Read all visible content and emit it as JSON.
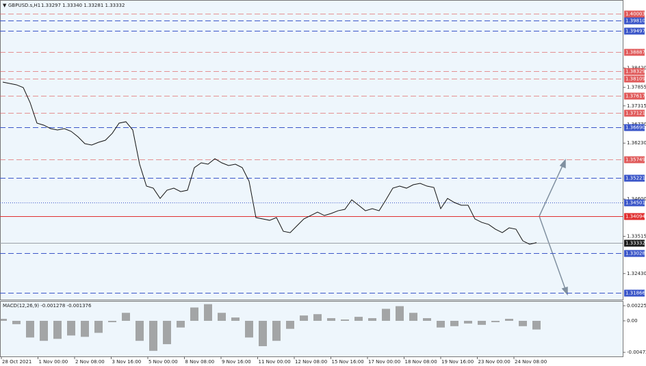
{
  "chart_data": [
    {
      "type": "line",
      "title": "GBPUSD.s,H1",
      "subtitle": "1.33297 1.33340 1.33281 1.33332",
      "color": "#111111",
      "ylim": [
        1.3167,
        1.4034
      ],
      "yticks": [
        {
          "value": 1.3842,
          "label": "1.38420"
        },
        1.37855,
        1.37315,
        {
          "value": 1.3677,
          "label": "1.36770"
        },
        {
          "value": 1.3623,
          "label": "1.36230"
        },
        {
          "value": 1.346,
          "label": "1.34600"
        },
        1.33515,
        {
          "value": 1.3243,
          "label": "1.32430"
        }
      ],
      "xticks": [
        "28 Oct 2021",
        "1 Nov 00:00",
        "2 Nov 08:00",
        "3 Nov 16:00",
        "5 Nov 00:00",
        "8 Nov 08:00",
        "9 Nov 16:00",
        "11 Nov 00:00",
        "12 Nov 08:00",
        "15 Nov 16:00",
        "17 Nov 00:00",
        "18 Nov 08:00",
        "19 Nov 16:00",
        "23 Nov 00:00",
        "24 Nov 08:00"
      ],
      "values": [
        1.38009,
        1.37969,
        1.37929,
        1.37849,
        1.3741,
        1.36813,
        1.36753,
        1.36653,
        1.36613,
        1.36653,
        1.36573,
        1.36414,
        1.36214,
        1.36175,
        1.36254,
        1.36314,
        1.36514,
        1.36813,
        1.36853,
        1.36613,
        1.35616,
        1.34978,
        1.34918,
        1.34619,
        1.34858,
        1.34918,
        1.34818,
        1.34858,
        1.35516,
        1.35656,
        1.35616,
        1.35776,
        1.35656,
        1.35576,
        1.35616,
        1.35516,
        1.35118,
        1.34061,
        1.34021,
        1.33981,
        1.34061,
        1.33662,
        1.33622,
        1.33822,
        1.34021,
        1.34121,
        1.3422,
        1.34121,
        1.34181,
        1.3426,
        1.343,
        1.34579,
        1.3442,
        1.3426,
        1.3432,
        1.3426,
        1.34579,
        1.34918,
        1.34978,
        1.34918,
        1.35018,
        1.35058,
        1.34978,
        1.34938,
        1.3432,
        1.34619,
        1.345,
        1.3442,
        1.3442,
        1.34021,
        1.33921,
        1.33861,
        1.33722,
        1.33622,
        1.33762,
        1.33722,
        1.33383,
        1.33283,
        1.33332
      ],
      "levels": [
        {
          "value": 1.40003,
          "color": "#e05a5a",
          "style": "dashed"
        },
        {
          "value": 1.3981,
          "label": "1.39810",
          "color": "#3a55c8",
          "style": "dashed"
        },
        {
          "value": 1.39497,
          "color": "#3a55c8",
          "style": "dashed"
        },
        {
          "value": 1.38887,
          "color": "#e05a5a",
          "style": "dashed"
        },
        {
          "value": 1.38329,
          "color": "#e05a5a",
          "style": "dashed"
        },
        {
          "value": 1.38109,
          "color": "#e05a5a",
          "style": "dashed"
        },
        {
          "value": 1.37617,
          "color": "#e05a5a",
          "style": "dashed"
        },
        {
          "value": 1.37121,
          "color": "#e05a5a",
          "style": "dashed"
        },
        {
          "value": 1.3669,
          "label": "1.36690",
          "color": "#3a55c8",
          "style": "dashed"
        },
        {
          "value": 1.35749,
          "color": "#e05a5a",
          "style": "dashed"
        },
        {
          "value": 1.35221,
          "color": "#3a55c8",
          "style": "dashed"
        },
        {
          "value": 1.34501,
          "color": "#3a55c8",
          "style": "dotted"
        },
        {
          "value": 1.34094,
          "color": "#e03030",
          "style": "solid"
        },
        {
          "value": 1.33332,
          "color": "#1a1a1a",
          "style": "current"
        },
        {
          "value": 1.33028,
          "color": "#3a55c8",
          "style": "dashed"
        },
        {
          "value": 1.31866,
          "color": "#3a55c8",
          "style": "dashed"
        }
      ]
    },
    {
      "type": "bar",
      "title": "MACD(12,26,9) -0.001278 -0.001376",
      "color": "#8a8a8a",
      "ylim": [
        -0.00544,
        0.00287
      ],
      "yticks": [
        0.002258,
        {
          "value": 0,
          "label": "0.00"
        },
        -0.004723
      ],
      "values": [
        0.0003,
        -0.0005,
        -0.0025,
        -0.003,
        -0.0027,
        -0.0022,
        -0.0024,
        -0.0018,
        -0.0002,
        0.0012,
        -0.003,
        -0.0045,
        -0.0035,
        -0.001,
        0.002,
        0.0025,
        0.0012,
        0.0005,
        -0.0025,
        -0.0038,
        -0.003,
        -0.0012,
        0.0008,
        0.001,
        0.0004,
        0.0002,
        0.0006,
        0.0004,
        0.0018,
        0.0022,
        0.0012,
        0.0004,
        -0.001,
        -0.0008,
        -0.0004,
        -0.0006,
        -0.0002,
        0.0003,
        -0.0008,
        -0.0013
      ]
    }
  ]
}
